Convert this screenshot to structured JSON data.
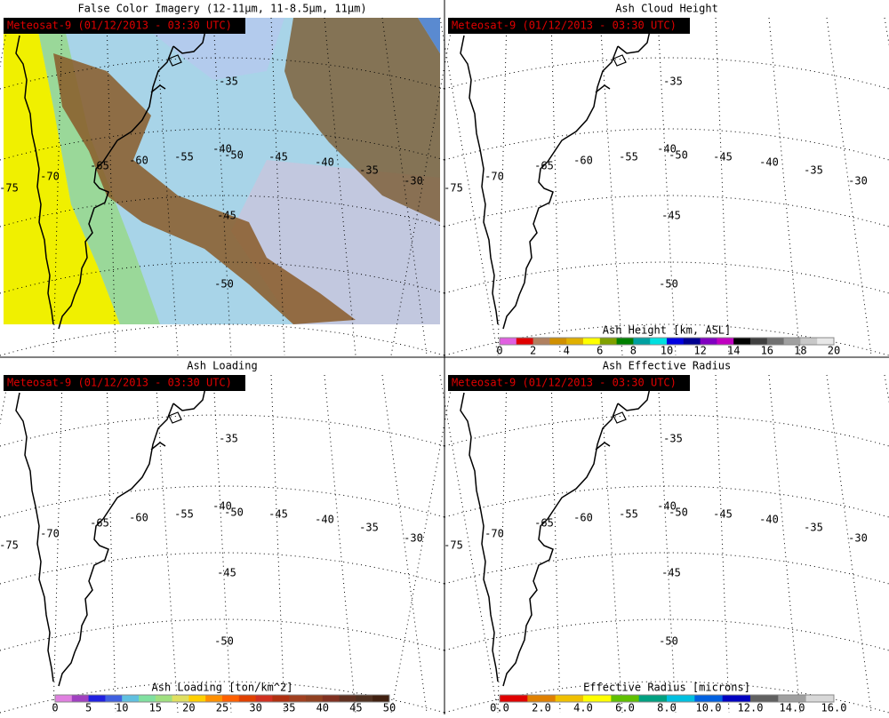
{
  "panels": [
    {
      "title": "False Color Imagery (12-11μm, 11-8.5μm, 11μm)",
      "satellite_label": "Meteosat-9  (01/12/2013 - 03:30 UTC)"
    },
    {
      "title": "Ash Cloud Height",
      "satellite_label": "Meteosat-9  (01/12/2013 - 03:30 UTC)",
      "colorbar": {
        "title": "Ash Height [km, ASL]",
        "ticks": [
          "0",
          "2",
          "4",
          "6",
          "8",
          "10",
          "12",
          "14",
          "16",
          "18",
          "20"
        ],
        "colors": [
          "#e060e0",
          "#e00000",
          "#b08060",
          "#d09000",
          "#e0b000",
          "#ffff00",
          "#80a000",
          "#008000",
          "#00a0a0",
          "#00e0e0",
          "#0000e0",
          "#000090",
          "#8000c0",
          "#c000c0",
          "#000000",
          "#404040",
          "#707070",
          "#a0a0a0",
          "#c8c8c8",
          "#e8e8e8"
        ]
      }
    },
    {
      "title": "Ash Loading",
      "satellite_label": "Meteosat-9  (01/12/2013 - 03:30 UTC)",
      "colorbar": {
        "title": "Ash Loading [ton/km^2]",
        "ticks": [
          "0",
          "5",
          "10",
          "15",
          "20",
          "25",
          "30",
          "35",
          "40",
          "45",
          "50"
        ],
        "colors": [
          "#e080e0",
          "#a040c0",
          "#2020e0",
          "#4060e0",
          "#60c0e0",
          "#80e0a0",
          "#a0e080",
          "#e0e060",
          "#ffd000",
          "#ff9000",
          "#ff6000",
          "#e04000",
          "#d03020",
          "#b03010",
          "#a04020",
          "#904020",
          "#803020",
          "#603020",
          "#503020",
          "#402010"
        ]
      }
    },
    {
      "title": "Ash Effective Radius",
      "satellite_label": "Meteosat-9  (01/12/2013 - 03:30 UTC)",
      "colorbar": {
        "title": "Effective Radius [microns]",
        "ticks": [
          "0.0",
          "2.0",
          "4.0",
          "6.0",
          "8.0",
          "10.0",
          "12.0",
          "14.0",
          "16.0"
        ],
        "colors": [
          "#e00000",
          "#e08000",
          "#f0c000",
          "#ffff00",
          "#60c000",
          "#00a080",
          "#00c0e0",
          "#0060e0",
          "#0000c0",
          "#606060",
          "#a0a0a0",
          "#d8d8d8"
        ]
      }
    }
  ],
  "grid_labels": [
    "-35",
    "-40",
    "-45",
    "-50",
    "-75",
    "-70",
    "-65",
    "-60",
    "-55",
    "-50",
    "-45",
    "-40",
    "-35",
    "-30"
  ]
}
